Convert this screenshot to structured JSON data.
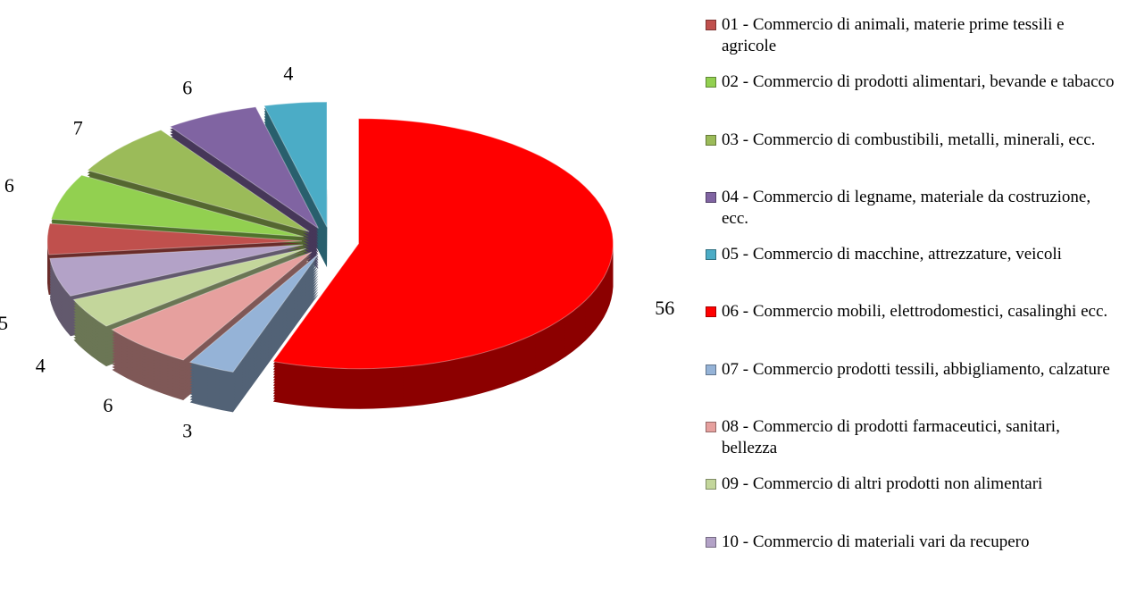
{
  "chart_data": {
    "type": "pie",
    "categories": [
      "01 - Commercio di animali, materie prime tessili e agricole",
      "02 - Commercio di prodotti alimentari, bevande e tabacco",
      "03 - Commercio di combustibili, metalli, minerali, ecc.",
      "04 - Commercio di legname, materiale da costruzione, ecc.",
      "05 - Commercio di macchine, attrezzature, veicoli",
      "06 - Commercio mobili, elettrodomestici, casalinghi ecc.",
      "07 - Commercio prodotti tessili, abbigliamento, calzature",
      "08 - Commercio di prodotti farmaceutici, sanitari, bellezza",
      "09 - Commercio di altri prodotti non alimentari",
      "10 - Commercio di materiali vari da recupero"
    ],
    "values": [
      4,
      6,
      7,
      6,
      4,
      56,
      3,
      6,
      4,
      5
    ],
    "colors": [
      "#c0504d",
      "#92d050",
      "#9bbb59",
      "#8064a2",
      "#4bacc6",
      "#ff0000",
      "#95b3d7",
      "#e6a09e",
      "#c3d69b",
      "#b3a2c7"
    ],
    "start_slice": 5,
    "legend": "right"
  }
}
